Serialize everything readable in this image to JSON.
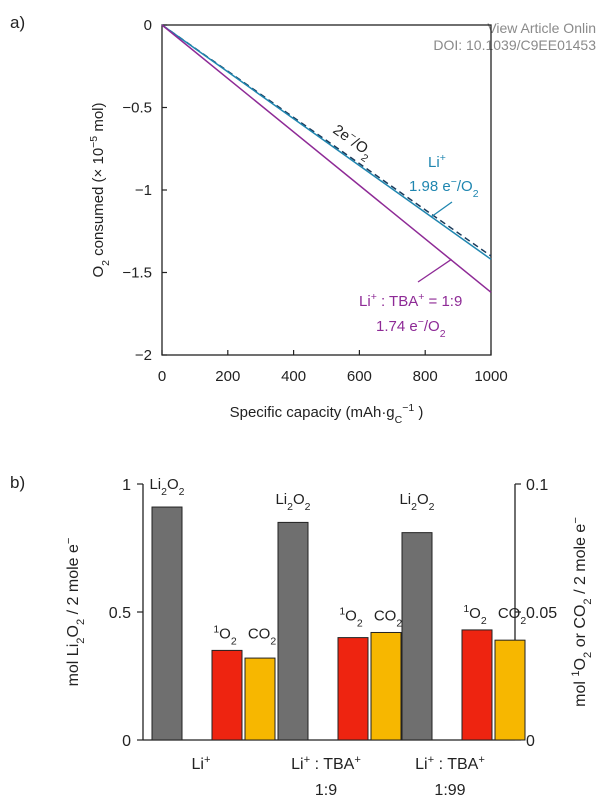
{
  "watermark": {
    "line1": "View Article Onlin",
    "line2": "DOI: 10.1039/C9EE01453"
  },
  "colors": {
    "li": "#1f86b0",
    "tba": "#8e2a96",
    "li2o2_bar": "#6f6f6f",
    "singlet_o2_bar": "#ee2410",
    "co2_bar": "#f7b700",
    "axis": "#222222"
  },
  "chart_data": [
    {
      "panel_label": "a)",
      "type": "line",
      "xlabel": "Specific capacity (mAh·g",
      "xlabel_sub": "C",
      "xlabel_sup": "−1",
      "xlabel_end": " )",
      "ylabel_pre": "O",
      "ylabel_sub": "2",
      "ylabel_mid": " consumed (× 10",
      "ylabel_sup": "−5",
      "ylabel_end": " mol)",
      "xlim": [
        0,
        1000
      ],
      "ylim": [
        -2,
        0
      ],
      "xticks": [
        "0",
        "200",
        "400",
        "600",
        "800",
        "1000"
      ],
      "xtick_values": [
        0,
        200,
        400,
        600,
        800,
        1000
      ],
      "yticks": [
        "0",
        "−0.5",
        "−1",
        "−1.5",
        "−2"
      ],
      "ytick_values": [
        0,
        -0.5,
        -1,
        -1.5,
        -2
      ],
      "series": [
        {
          "name": "2e−/O2",
          "style": "dashed",
          "color": "#1a3a5a",
          "x": [
            0,
            1000
          ],
          "y": [
            0,
            -1.4
          ]
        },
        {
          "name": "Li+",
          "style": "solid",
          "color": "#1f86b0",
          "x": [
            0,
            1000
          ],
          "y": [
            0,
            -1.42
          ]
        },
        {
          "name": "Li+ : TBA+ = 1:9",
          "style": "solid",
          "color": "#8e2a96",
          "x": [
            0,
            1000
          ],
          "y": [
            0,
            -1.62
          ]
        }
      ],
      "annotations": {
        "ref_label": {
          "pre": "2e",
          "sup": "−",
          "post": "/O",
          "sub": "2"
        },
        "li_label": {
          "line1_pre": "Li",
          "line1_sup": "+",
          "line2_pre": "1.98 e",
          "line2_sup": "−",
          "line2_mid": "/O",
          "line2_sub": "2"
        },
        "tba_label": {
          "line1": "Li",
          "sup1": "+",
          "mid1": " : TBA",
          "sup2": "+",
          "end1": " = 1:9",
          "line2_pre": "1.74 e",
          "line2_sup": "−",
          "line2_mid": "/O",
          "line2_sub": "2"
        }
      }
    },
    {
      "panel_label": "b)",
      "type": "bar",
      "categories": [
        {
          "line1_pre": "Li",
          "line1_sup": "+",
          "line2": ""
        },
        {
          "line1_pre": "Li",
          "line1_sup": "+",
          "line1_mid": " : TBA",
          "line1_sup2": "+",
          "line2": "1:9"
        },
        {
          "line1_pre": "Li",
          "line1_sup": "+",
          "line1_mid": " : TBA",
          "line1_sup2": "+",
          "line2": "1:99"
        }
      ],
      "series": [
        {
          "name": "Li2O2",
          "axis": "left",
          "color": "#6f6f6f",
          "values": [
            0.91,
            0.85,
            0.81
          ]
        },
        {
          "name": "1O2",
          "axis": "right",
          "color": "#ee2410",
          "values": [
            0.035,
            0.04,
            0.043
          ]
        },
        {
          "name": "CO2",
          "axis": "right",
          "color": "#f7b700",
          "values": [
            0.032,
            0.042,
            0.039
          ]
        }
      ],
      "left_axis": {
        "ylim": [
          0,
          1
        ],
        "ticks": [
          "0",
          "0.5",
          "1"
        ],
        "tick_values": [
          0,
          0.5,
          1
        ],
        "label": {
          "pre": "mol Li",
          "sub1": "2",
          "mid": "O",
          "sub2": "2",
          "post": " / 2 mole e",
          "sup": "−"
        }
      },
      "right_axis": {
        "ylim": [
          0,
          0.1
        ],
        "ticks": [
          "0",
          "0.05",
          "0.1"
        ],
        "tick_values": [
          0,
          0.05,
          0.1
        ],
        "label": {
          "pre": "mol ",
          "sup1": "1",
          "mid1": "O",
          "sub1": "2",
          "mid2": " or CO",
          "sub2": "2",
          "post": " / 2 mole e",
          "sup2": "−"
        }
      },
      "bar_labels": {
        "li2o2": {
          "pre": "Li",
          "sub1": "2",
          "mid": "O",
          "sub2": "2"
        },
        "singlet": {
          "sup": "1",
          "pre": "O",
          "sub": "2"
        },
        "co2": {
          "pre": "CO",
          "sub": "2"
        }
      }
    }
  ]
}
